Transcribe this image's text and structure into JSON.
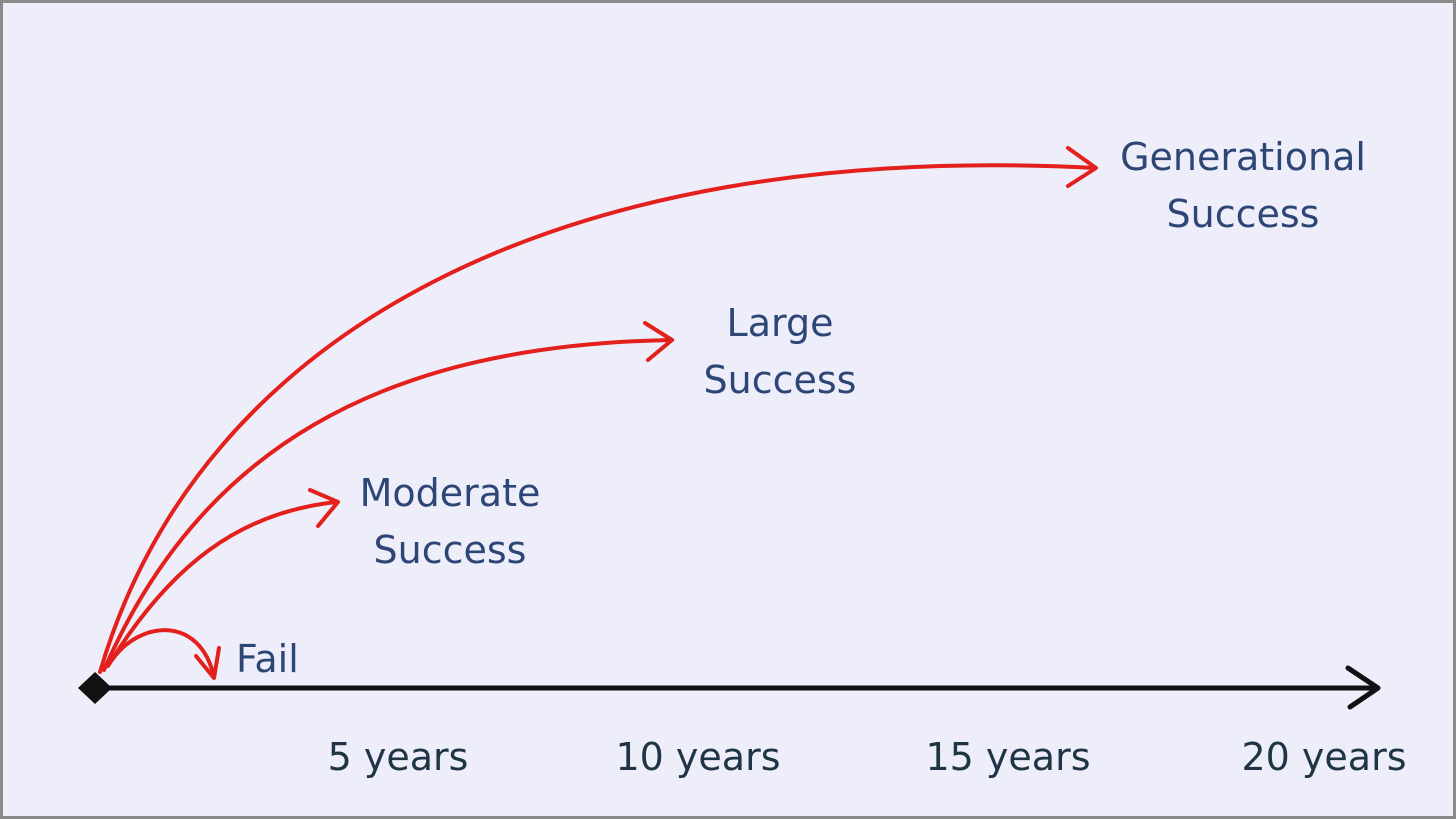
{
  "outcomes": [
    {
      "lines": [
        "Generational",
        "Success"
      ]
    },
    {
      "lines": [
        "Large",
        "Success"
      ]
    },
    {
      "lines": [
        "Moderate",
        "Success"
      ]
    },
    {
      "lines": [
        "Fail"
      ]
    }
  ],
  "timeline": {
    "labels": [
      "5 years",
      "10 years",
      "15 years",
      "20 years"
    ]
  }
}
